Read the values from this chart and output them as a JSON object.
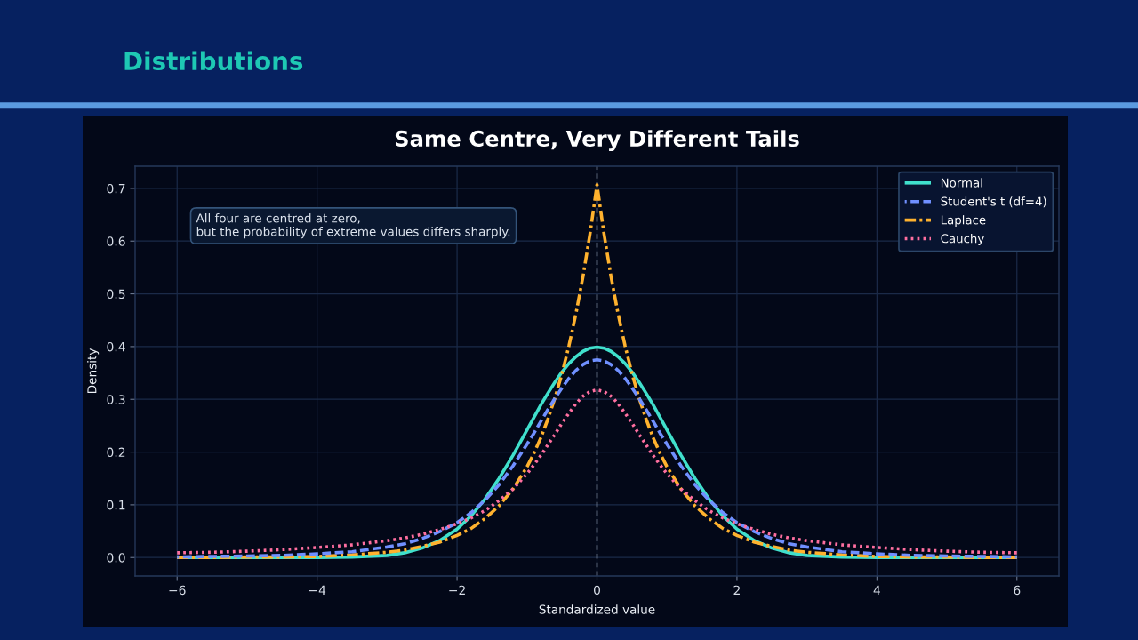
{
  "chart_data": {
    "type": "line",
    "title": "Same Centre, Very Different Tails",
    "xlabel": "Standardized value",
    "ylabel": "Density",
    "annotations": [
      "Distributions",
      "All four are centred at zero,\nbut the probability of extreme values differs sharply."
    ],
    "x": [
      -6,
      -5.5,
      -5,
      -4.5,
      -4,
      -3.5,
      -3,
      -2.75,
      -2.5,
      -2.25,
      -2,
      -1.8,
      -1.6,
      -1.4,
      -1.2,
      -1,
      -0.9,
      -0.8,
      -0.7,
      -0.6,
      -0.5,
      -0.4,
      -0.3,
      -0.2,
      -0.1,
      0,
      0.1,
      0.2,
      0.3,
      0.4,
      0.5,
      0.6,
      0.7,
      0.8,
      0.9,
      1,
      1.2,
      1.4,
      1.6,
      1.8,
      2,
      2.25,
      2.5,
      2.75,
      3,
      3.5,
      4,
      4.5,
      5,
      5.5,
      6
    ],
    "series": [
      {
        "name": "Normal",
        "color": "#40e0cc",
        "line_style": "solid",
        "values": [
          0,
          0,
          0,
          0,
          0,
          0.001,
          0.004,
          0.009,
          0.018,
          0.032,
          0.054,
          0.079,
          0.111,
          0.15,
          0.194,
          0.242,
          0.266,
          0.29,
          0.312,
          0.333,
          0.352,
          0.368,
          0.381,
          0.391,
          0.397,
          0.399,
          0.397,
          0.391,
          0.381,
          0.368,
          0.352,
          0.333,
          0.312,
          0.29,
          0.266,
          0.242,
          0.194,
          0.15,
          0.111,
          0.079,
          0.054,
          0.032,
          0.018,
          0.009,
          0.004,
          0.001,
          0,
          0,
          0,
          0,
          0
        ]
      },
      {
        "name": "Student's t (df=4)",
        "color": "#7090ff",
        "line_style": "dashed",
        "values": [
          0.001,
          0.002,
          0.003,
          0.004,
          0.007,
          0.011,
          0.02,
          0.026,
          0.036,
          0.049,
          0.066,
          0.085,
          0.109,
          0.138,
          0.174,
          0.215,
          0.236,
          0.259,
          0.281,
          0.302,
          0.322,
          0.34,
          0.355,
          0.366,
          0.373,
          0.375,
          0.373,
          0.366,
          0.355,
          0.34,
          0.322,
          0.302,
          0.281,
          0.259,
          0.236,
          0.215,
          0.174,
          0.138,
          0.109,
          0.085,
          0.066,
          0.049,
          0.036,
          0.026,
          0.02,
          0.011,
          0.007,
          0.004,
          0.003,
          0.002,
          0.001
        ]
      },
      {
        "name": "Laplace",
        "color": "#ffb22e",
        "line_style": "dashdot",
        "values": [
          0,
          0,
          0.001,
          0.001,
          0.002,
          0.005,
          0.01,
          0.014,
          0.021,
          0.029,
          0.042,
          0.055,
          0.074,
          0.098,
          0.13,
          0.172,
          0.198,
          0.228,
          0.263,
          0.303,
          0.349,
          0.402,
          0.463,
          0.533,
          0.614,
          0.707,
          0.614,
          0.533,
          0.463,
          0.402,
          0.349,
          0.303,
          0.263,
          0.228,
          0.198,
          0.172,
          0.13,
          0.098,
          0.074,
          0.055,
          0.042,
          0.029,
          0.021,
          0.014,
          0.01,
          0.005,
          0.002,
          0.001,
          0.001,
          0,
          0
        ]
      },
      {
        "name": "Cauchy",
        "color": "#ff6fa0",
        "line_style": "dotted",
        "values": [
          0.009,
          0.01,
          0.012,
          0.015,
          0.019,
          0.024,
          0.032,
          0.037,
          0.044,
          0.053,
          0.064,
          0.075,
          0.089,
          0.108,
          0.13,
          0.159,
          0.176,
          0.194,
          0.214,
          0.234,
          0.255,
          0.274,
          0.292,
          0.306,
          0.315,
          0.318,
          0.315,
          0.306,
          0.292,
          0.274,
          0.255,
          0.234,
          0.214,
          0.194,
          0.176,
          0.159,
          0.13,
          0.108,
          0.089,
          0.075,
          0.064,
          0.053,
          0.044,
          0.037,
          0.032,
          0.024,
          0.019,
          0.015,
          0.012,
          0.01,
          0.009
        ]
      }
    ],
    "xlim": [
      -6.6,
      6.6
    ],
    "ylim": [
      -0.035,
      0.742
    ],
    "xticks": [
      {
        "value": -6,
        "label": "−6"
      },
      {
        "value": -4,
        "label": "−4"
      },
      {
        "value": -2,
        "label": "−2"
      },
      0,
      2,
      4,
      6
    ],
    "yticks": [
      {
        "value": 0,
        "label": "0.0"
      },
      0.1,
      0.2,
      0.3,
      0.4,
      0.5,
      0.6,
      0.7
    ],
    "grid": true,
    "legend": "top right",
    "marker": "none",
    "ref_lines": [
      {
        "axis": "x",
        "value": 0,
        "color": "#9aa4b4",
        "line_style": "dashed"
      }
    ]
  }
}
